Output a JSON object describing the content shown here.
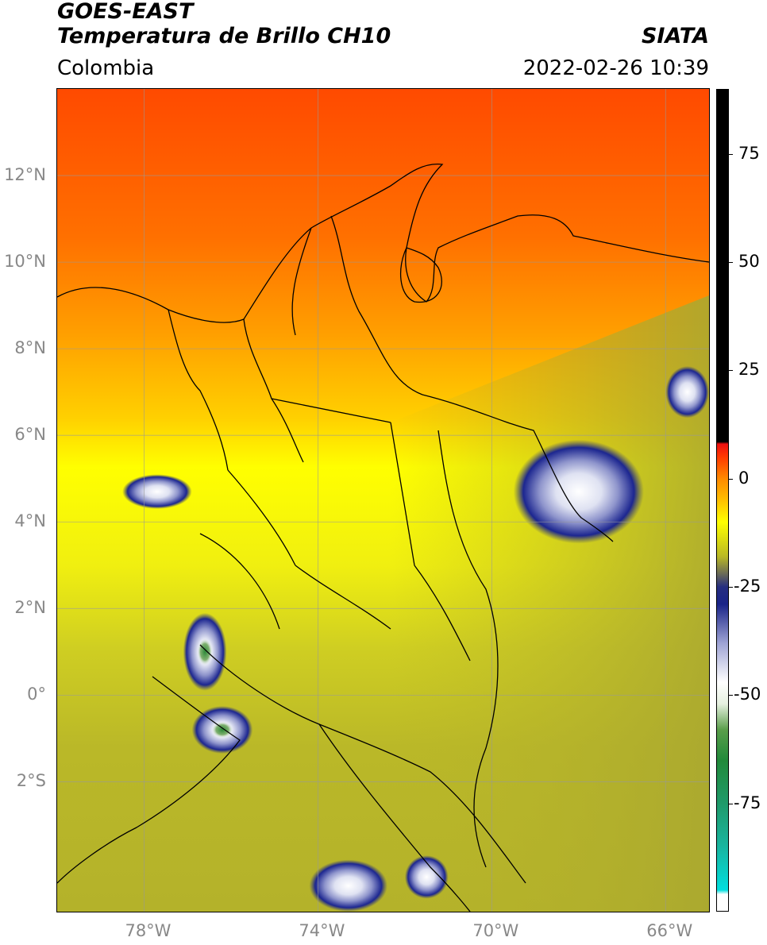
{
  "header": {
    "title_line1": "GOES-EAST",
    "title_line2": "Temperatura de Brillo CH10",
    "brand": "SIATA",
    "region": "Colombia",
    "timestamp": "2022-02-26 10:39"
  },
  "chart_data": {
    "type": "heatmap",
    "title": "Temperatura de Brillo CH10",
    "region": "Colombia",
    "lon_range": [
      -80,
      -65
    ],
    "lat_range": [
      -5,
      14
    ],
    "lon_ticks": [
      {
        "value": -78,
        "label": "78°W"
      },
      {
        "value": -74,
        "label": "74°W"
      },
      {
        "value": -70,
        "label": "70°W"
      },
      {
        "value": -66,
        "label": "66°W"
      }
    ],
    "lat_ticks": [
      {
        "value": 12,
        "label": "12°N"
      },
      {
        "value": 10,
        "label": "10°N"
      },
      {
        "value": 8,
        "label": "8°N"
      },
      {
        "value": 6,
        "label": "6°N"
      },
      {
        "value": 4,
        "label": "4°N"
      },
      {
        "value": 2,
        "label": "2°N"
      },
      {
        "value": 0,
        "label": "0°"
      },
      {
        "value": -2,
        "label": "2°S"
      }
    ],
    "grid": true,
    "colorbar": {
      "range": [
        -100,
        90
      ],
      "ticks": [
        {
          "value": 75,
          "label": "75"
        },
        {
          "value": 50,
          "label": "50"
        },
        {
          "value": 25,
          "label": "25"
        },
        {
          "value": 0,
          "label": "0"
        },
        {
          "value": -25,
          "label": "-25"
        },
        {
          "value": -50,
          "label": "-50"
        },
        {
          "value": -75,
          "label": "-75"
        }
      ],
      "stops": [
        {
          "value": -100,
          "color": "#ffffff"
        },
        {
          "value": -96,
          "color": "#ffffff"
        },
        {
          "value": -95,
          "color": "#00dede"
        },
        {
          "value": -85,
          "color": "#19b5a0"
        },
        {
          "value": -75,
          "color": "#1f9a6a"
        },
        {
          "value": -65,
          "color": "#228a3a"
        },
        {
          "value": -58,
          "color": "#5a9e4a"
        },
        {
          "value": -52,
          "color": "#e6f0e0"
        },
        {
          "value": -47,
          "color": "#ffffff"
        },
        {
          "value": -38,
          "color": "#9ea3d4"
        },
        {
          "value": -29,
          "color": "#1a2488"
        },
        {
          "value": -25,
          "color": "#262e80"
        },
        {
          "value": -22,
          "color": "#6a6a58"
        },
        {
          "value": -18,
          "color": "#b9b825"
        },
        {
          "value": -14,
          "color": "#dcdc10"
        },
        {
          "value": -10,
          "color": "#ffff00"
        },
        {
          "value": -5,
          "color": "#ffc000"
        },
        {
          "value": 0,
          "color": "#ff8a00"
        },
        {
          "value": 5,
          "color": "#ff3a00"
        },
        {
          "value": 8,
          "color": "#ee1010"
        },
        {
          "value": 8.5,
          "color": "#000000"
        },
        {
          "value": 90,
          "color": "#000000"
        }
      ]
    },
    "cloud_cells": [
      {
        "lon": -68.0,
        "lat": 4.7,
        "rx": 1.5,
        "ry": 1.2
      },
      {
        "lon": -76.6,
        "lat": 1.0,
        "rx": 0.5,
        "ry": 0.9
      },
      {
        "lon": -76.2,
        "lat": -0.8,
        "rx": 0.7,
        "ry": 0.55
      },
      {
        "lon": -77.7,
        "lat": 4.7,
        "rx": 0.8,
        "ry": 0.4
      },
      {
        "lon": -73.3,
        "lat": -4.4,
        "rx": 0.9,
        "ry": 0.6
      },
      {
        "lon": -65.5,
        "lat": 7.0,
        "rx": 0.5,
        "ry": 0.6
      },
      {
        "lon": -71.5,
        "lat": -4.2,
        "rx": 0.5,
        "ry": 0.5
      }
    ]
  }
}
